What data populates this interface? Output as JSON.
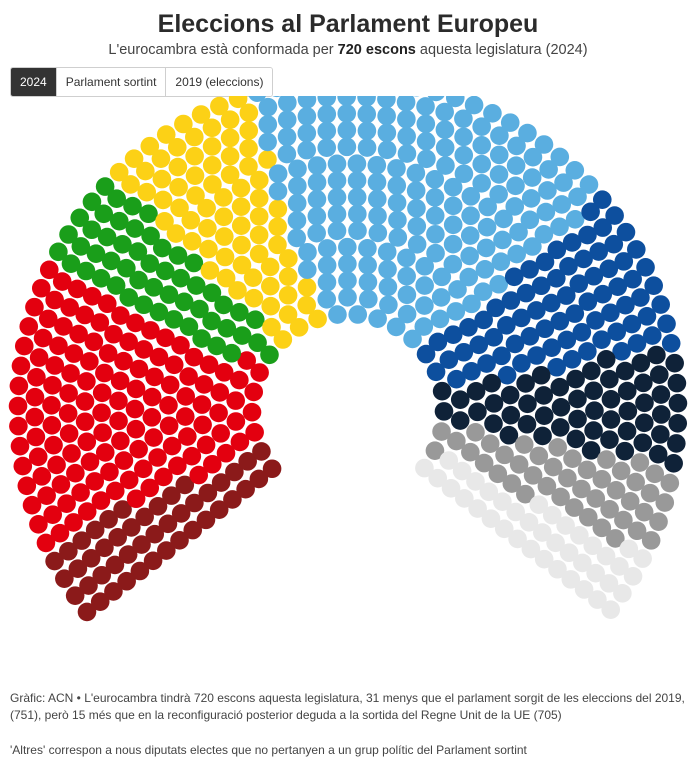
{
  "header": {
    "title": "Eleccions al Parlament Europeu",
    "subtitle_pre": "L'eurocambra està conformada per ",
    "subtitle_bold": "720 escons",
    "subtitle_post": " aquesta legislatura (2024)"
  },
  "tabs": [
    {
      "label": "2024",
      "active": true
    },
    {
      "label": "Parlament sortint",
      "active": false
    },
    {
      "label": "2019 (eleccions)",
      "active": false
    }
  ],
  "chart_data": {
    "type": "parliament",
    "total_seats": 720,
    "series": [
      {
        "seats": 46,
        "color": "#8b1a1a"
      },
      {
        "seats": 136,
        "color": "#e3000f"
      },
      {
        "seats": 53,
        "color": "#1a9e1a"
      },
      {
        "seats": 77,
        "color": "#fcd116"
      },
      {
        "seats": 188,
        "color": "#5aaee0"
      },
      {
        "seats": 78,
        "color": "#0d4f9e"
      },
      {
        "seats": 58,
        "color": "#0f2238"
      },
      {
        "seats": 45,
        "color": "#999999"
      },
      {
        "seats": 39,
        "color": "#e8e8e8"
      }
    ]
  },
  "footer": {
    "source": "Gràfic: ACN • L'eurocambra tindrà 720 escons  aquesta legislatura, 31 menys que el parlament sorgit de les eleccions del 2019, (751), però 15 més que en la reconfiguració posterior deguda a la sortida del Regne Unit de la UE (705)",
    "note": "'Altres' correspon a nous diputats electes que no pertanyen a un grup polític del Parlament sortint"
  }
}
